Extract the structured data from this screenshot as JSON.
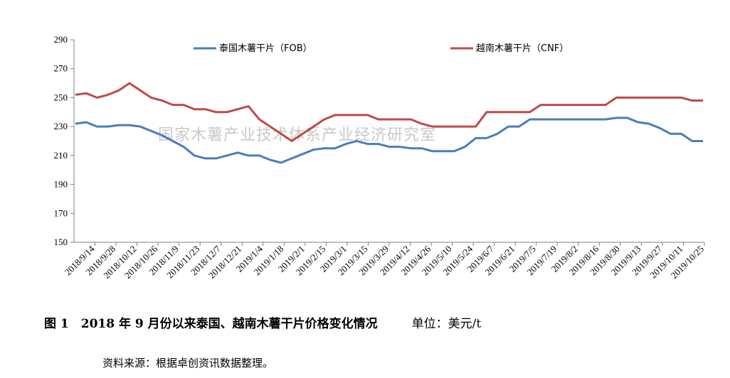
{
  "chart_data": {
    "type": "line",
    "title": "",
    "xlabel": "",
    "ylabel": "",
    "ylim": [
      150,
      290
    ],
    "yticks": [
      150,
      170,
      190,
      210,
      230,
      250,
      270,
      290
    ],
    "grid": false,
    "legend_position": "top",
    "x_tick_labels": [
      "2018/9/14",
      "2018/9/28",
      "2018/10/12",
      "2018/10/26",
      "2018/11/9",
      "2018/11/23",
      "2018/12/7",
      "2018/12/21",
      "2019/1/4",
      "2019/1/18",
      "2019/2/1",
      "2019/2/15",
      "2019/3/1",
      "2019/3/15",
      "2019/3/29",
      "2019/4/12",
      "2019/4/26",
      "2019/5/10",
      "2019/5/24",
      "2019/6/7",
      "2019/6/21",
      "2019/7/5",
      "2019/7/19",
      "2019/8/2",
      "2019/8/16",
      "2019/8/30",
      "2019/9/13",
      "2019/9/27",
      "2019/10/11",
      "2019/10/25"
    ],
    "series": [
      {
        "name": "泰国木薯干片（FOB）",
        "color": "#4a7ebb",
        "values": [
          232,
          233,
          230,
          230,
          231,
          231,
          230,
          227,
          224,
          220,
          216,
          210,
          208,
          208,
          210,
          212,
          210,
          210,
          207,
          205,
          208,
          211,
          214,
          215,
          215,
          218,
          220,
          218,
          218,
          216,
          216,
          215,
          215,
          213,
          213,
          213,
          216,
          222,
          222,
          225,
          230,
          230,
          235,
          235,
          235,
          235,
          235,
          235,
          235,
          235,
          236,
          236,
          233,
          232,
          229,
          225,
          225,
          220,
          220
        ]
      },
      {
        "name": "越南木薯干片（CNF）",
        "color": "#be4b48",
        "values": [
          252,
          253,
          250,
          252,
          255,
          260,
          255,
          250,
          248,
          245,
          245,
          242,
          242,
          240,
          240,
          242,
          244,
          235,
          230,
          225,
          220,
          225,
          230,
          235,
          238,
          238,
          238,
          238,
          235,
          235,
          235,
          235,
          232,
          230,
          230,
          230,
          230,
          230,
          240,
          240,
          240,
          240,
          240,
          245,
          245,
          245,
          245,
          245,
          245,
          245,
          250,
          250,
          250,
          250,
          250,
          250,
          250,
          248,
          248
        ]
      }
    ]
  },
  "watermark": "国家木薯产业技术体系产业经济研究室",
  "caption": {
    "text": "图 1　2018 年 9 月份以来泰国、越南木薯干片价格变化情况",
    "unit": "单位：美元/t"
  },
  "source": "资料来源：根据卓创资讯数据整理。"
}
